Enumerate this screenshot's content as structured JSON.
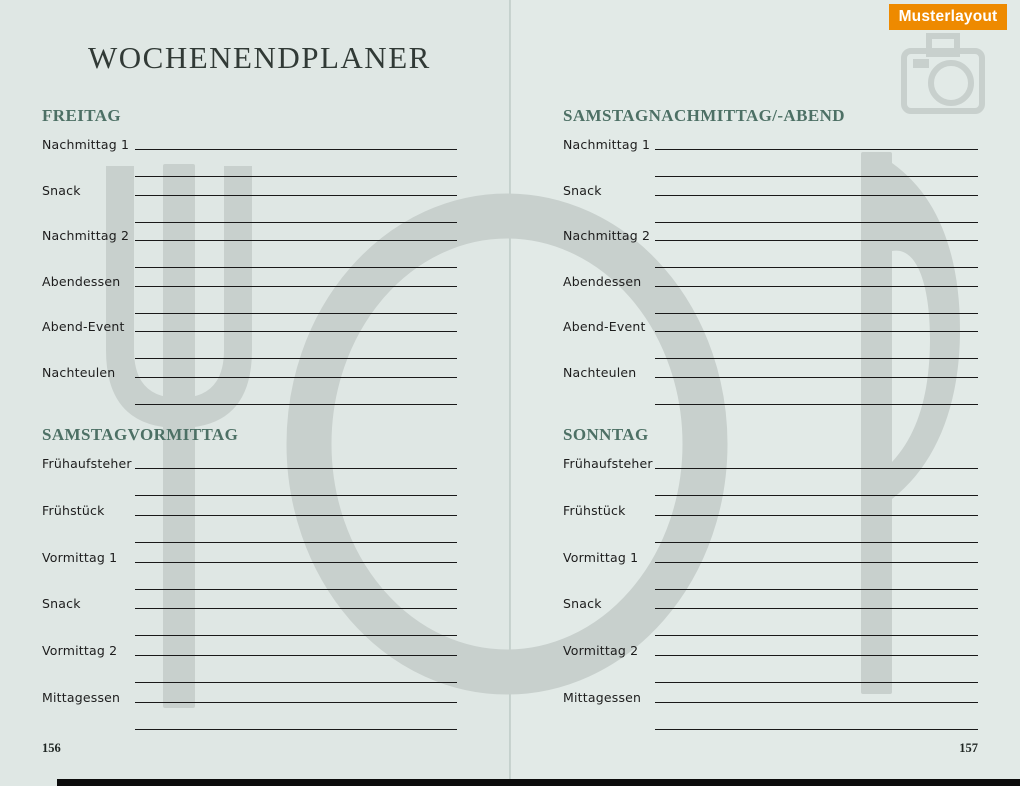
{
  "page": {
    "title": "WOCHENENDPLANER",
    "left_page_number": "156",
    "right_page_number": "157"
  },
  "badge": {
    "label": "Musterlayout",
    "background_color": "#ee8a00",
    "text_color": "#ffffff"
  },
  "colors": {
    "page_background_left": "#dfe7e4",
    "page_background_right": "#e2eae7",
    "watermark_gray": "#c8d0cd",
    "heading_green": "#4d7065",
    "rule_line": "#191919",
    "title_text": "#313a36",
    "footer_bar": "#0c0c0c"
  },
  "watermark_icons": {
    "color": "#c8d0cd",
    "icons": [
      "fork-icon",
      "plate-icon",
      "knife-icon",
      "camera-icon"
    ]
  },
  "sections": [
    {
      "heading": "FREITAG",
      "rows": [
        "Nachmittag 1",
        "Snack",
        "Nachmittag 2",
        "Abendessen",
        "Abend-Event",
        "Nachteulen"
      ]
    },
    {
      "heading": "SAMSTAGNACHMITTAG/-ABEND",
      "rows": [
        "Nachmittag 1",
        "Snack",
        "Nachmittag 2",
        "Abendessen",
        "Abend-Event",
        "Nachteulen"
      ]
    },
    {
      "heading": "SAMSTAGVORMITTAG",
      "rows": [
        "Frühaufsteher",
        "Frühstück",
        "Vormittag 1",
        "Snack",
        "Vormittag 2",
        "Mittagessen"
      ]
    },
    {
      "heading": "SONNTAG",
      "rows": [
        "Frühaufsteher",
        "Frühstück",
        "Vormittag 1",
        "Snack",
        "Vormittag 2",
        "Mittagessen"
      ]
    }
  ]
}
